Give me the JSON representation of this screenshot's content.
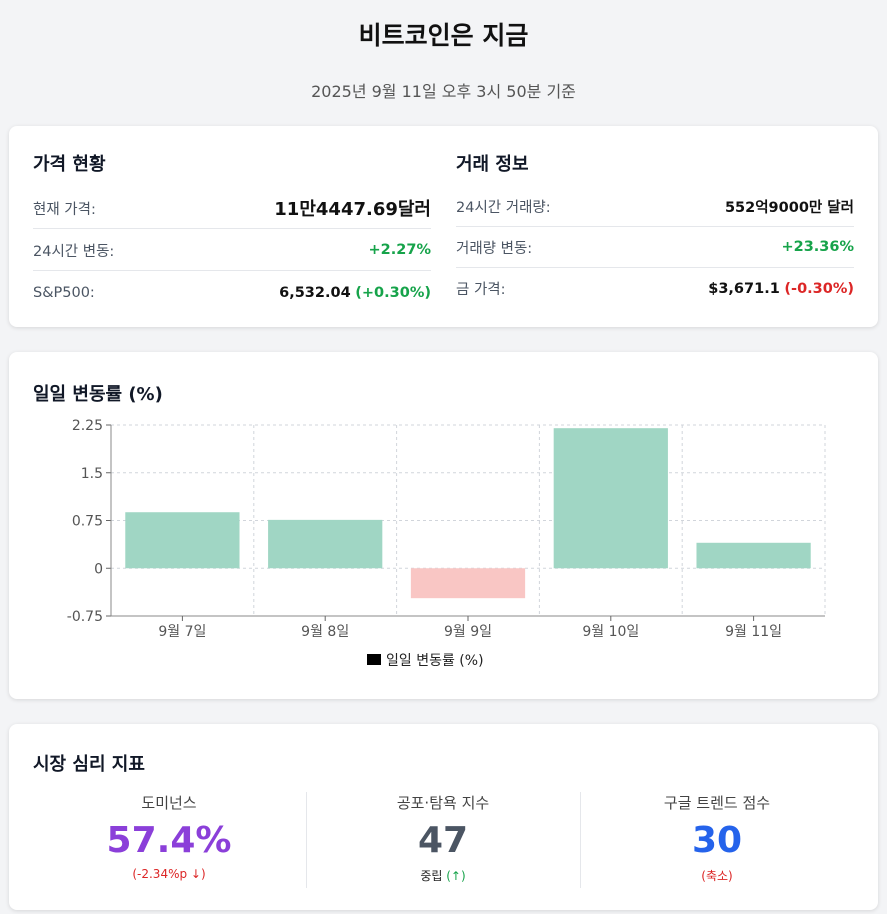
{
  "header": {
    "title": "비트코인은 지금",
    "subtitle": "2025년 9월 11일 오후 3시 50분 기준"
  },
  "price_status": {
    "title": "가격 현황",
    "rows": [
      {
        "label": "현재 가격:",
        "value": "11만4447.69달러"
      },
      {
        "label": "24시간 변동:",
        "value": "+2.27%"
      },
      {
        "label": "S&P500:",
        "value": "6,532.04",
        "change": "(+0.30%)"
      }
    ]
  },
  "trade_info": {
    "title": "거래 정보",
    "rows": [
      {
        "label": "24시간 거래량:",
        "value": "552억9000만 달러"
      },
      {
        "label": "거래량 변동:",
        "value": "+23.36%"
      },
      {
        "label": "금 가격:",
        "value": "$3,671.1",
        "change": "(-0.30%)"
      }
    ]
  },
  "chart_data": {
    "type": "bar",
    "title": "일일 변동률 (%)",
    "categories": [
      "9월 7일",
      "9월 8일",
      "9월 9일",
      "9월 10일",
      "9월 11일"
    ],
    "series": [
      {
        "name": "일일 변동률 (%)",
        "values": [
          0.88,
          0.76,
          -0.47,
          2.2,
          0.4
        ]
      }
    ],
    "yticks": [
      "2.25",
      "1.5",
      "0.75",
      "0",
      "-0.75"
    ],
    "ylim": [
      -0.75,
      2.25
    ],
    "grid": true,
    "legend": "bottom",
    "colors": {
      "positive": "#a0d6c4",
      "negative": "#f9c6c4",
      "legend_swatch": "#000000"
    }
  },
  "sentiment": {
    "title": "시장 심리 지표",
    "metrics": [
      {
        "label": "도미넌스",
        "value": "57.4%",
        "sub": "(-2.34%p ↓)",
        "value_color": "#8b3fd9",
        "sub_color": "#dc2626"
      },
      {
        "label": "공포·탐욕 지수",
        "value": "47",
        "sub_main": "중립",
        "sub_arrow": "(↑)",
        "value_color": "#4b5563",
        "sub_color": "#16a34a"
      },
      {
        "label": "구글 트렌드 점수",
        "value": "30",
        "sub": "(축소)",
        "value_color": "#2563eb",
        "sub_color": "#dc2626"
      }
    ]
  }
}
